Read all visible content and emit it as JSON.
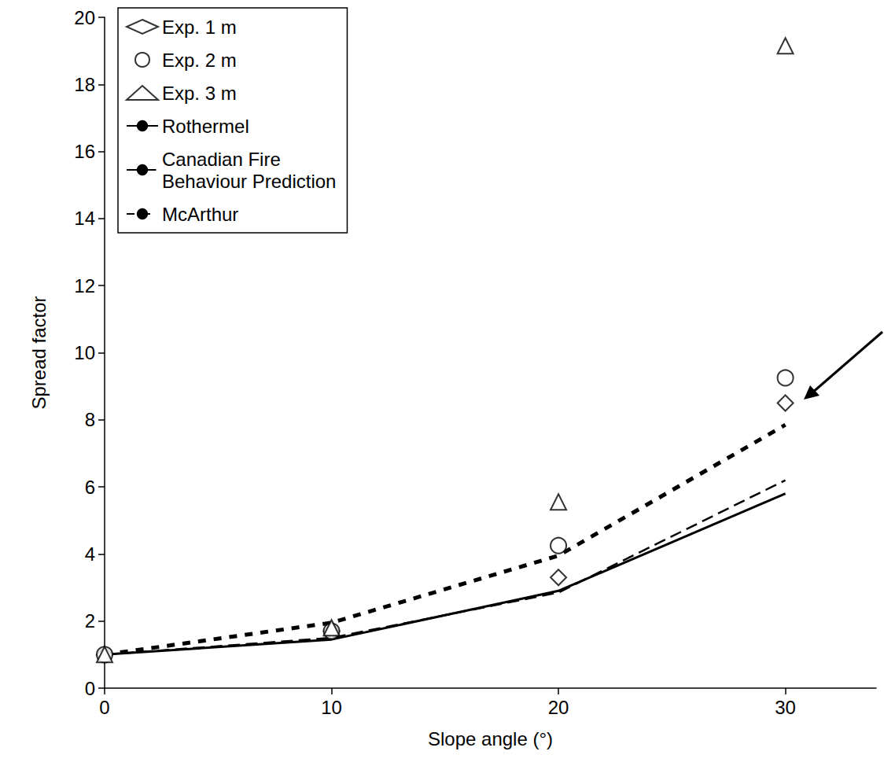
{
  "chart_data": {
    "type": "line",
    "x_label": "Slope angle (°)",
    "y_label": "Spread factor",
    "x": [
      0,
      10,
      20,
      30
    ],
    "xlim": [
      0,
      34
    ],
    "xticks": [
      0,
      10,
      20,
      30
    ],
    "ylim": [
      0,
      20
    ],
    "yticks": [
      0,
      2,
      4,
      6,
      8,
      10,
      12,
      14,
      16,
      18,
      20
    ],
    "grid": false,
    "legend": "upper left",
    "series": [
      {
        "name": "Exp. 1 m",
        "type": "scatter",
        "marker": "diamond",
        "color": "#000000",
        "values": [
          1,
          1.7,
          3.3,
          8.5
        ]
      },
      {
        "name": "Exp. 2 m",
        "type": "scatter",
        "marker": "circle",
        "color": "#000000",
        "values": [
          1,
          1.7,
          4.25,
          9.25
        ]
      },
      {
        "name": "Exp. 3 m",
        "type": "scatter",
        "marker": "triangle",
        "color": "#000000",
        "values": [
          1,
          1.8,
          5.55,
          19.15
        ]
      },
      {
        "name": "Rothermel",
        "type": "line",
        "line_style": "solid",
        "color": "#000000",
        "values": [
          1,
          1.45,
          2.9,
          5.8
        ]
      },
      {
        "name": "Canadian Fire Behaviour Prediction",
        "type": "line",
        "line_style": "dashed",
        "color": "#000000",
        "values": [
          1,
          1.5,
          2.85,
          6.2
        ]
      },
      {
        "name": "McArthur",
        "type": "line",
        "line_style": "dotted",
        "color": "#000000",
        "values": [
          1,
          1.95,
          3.95,
          7.85
        ]
      }
    ]
  }
}
